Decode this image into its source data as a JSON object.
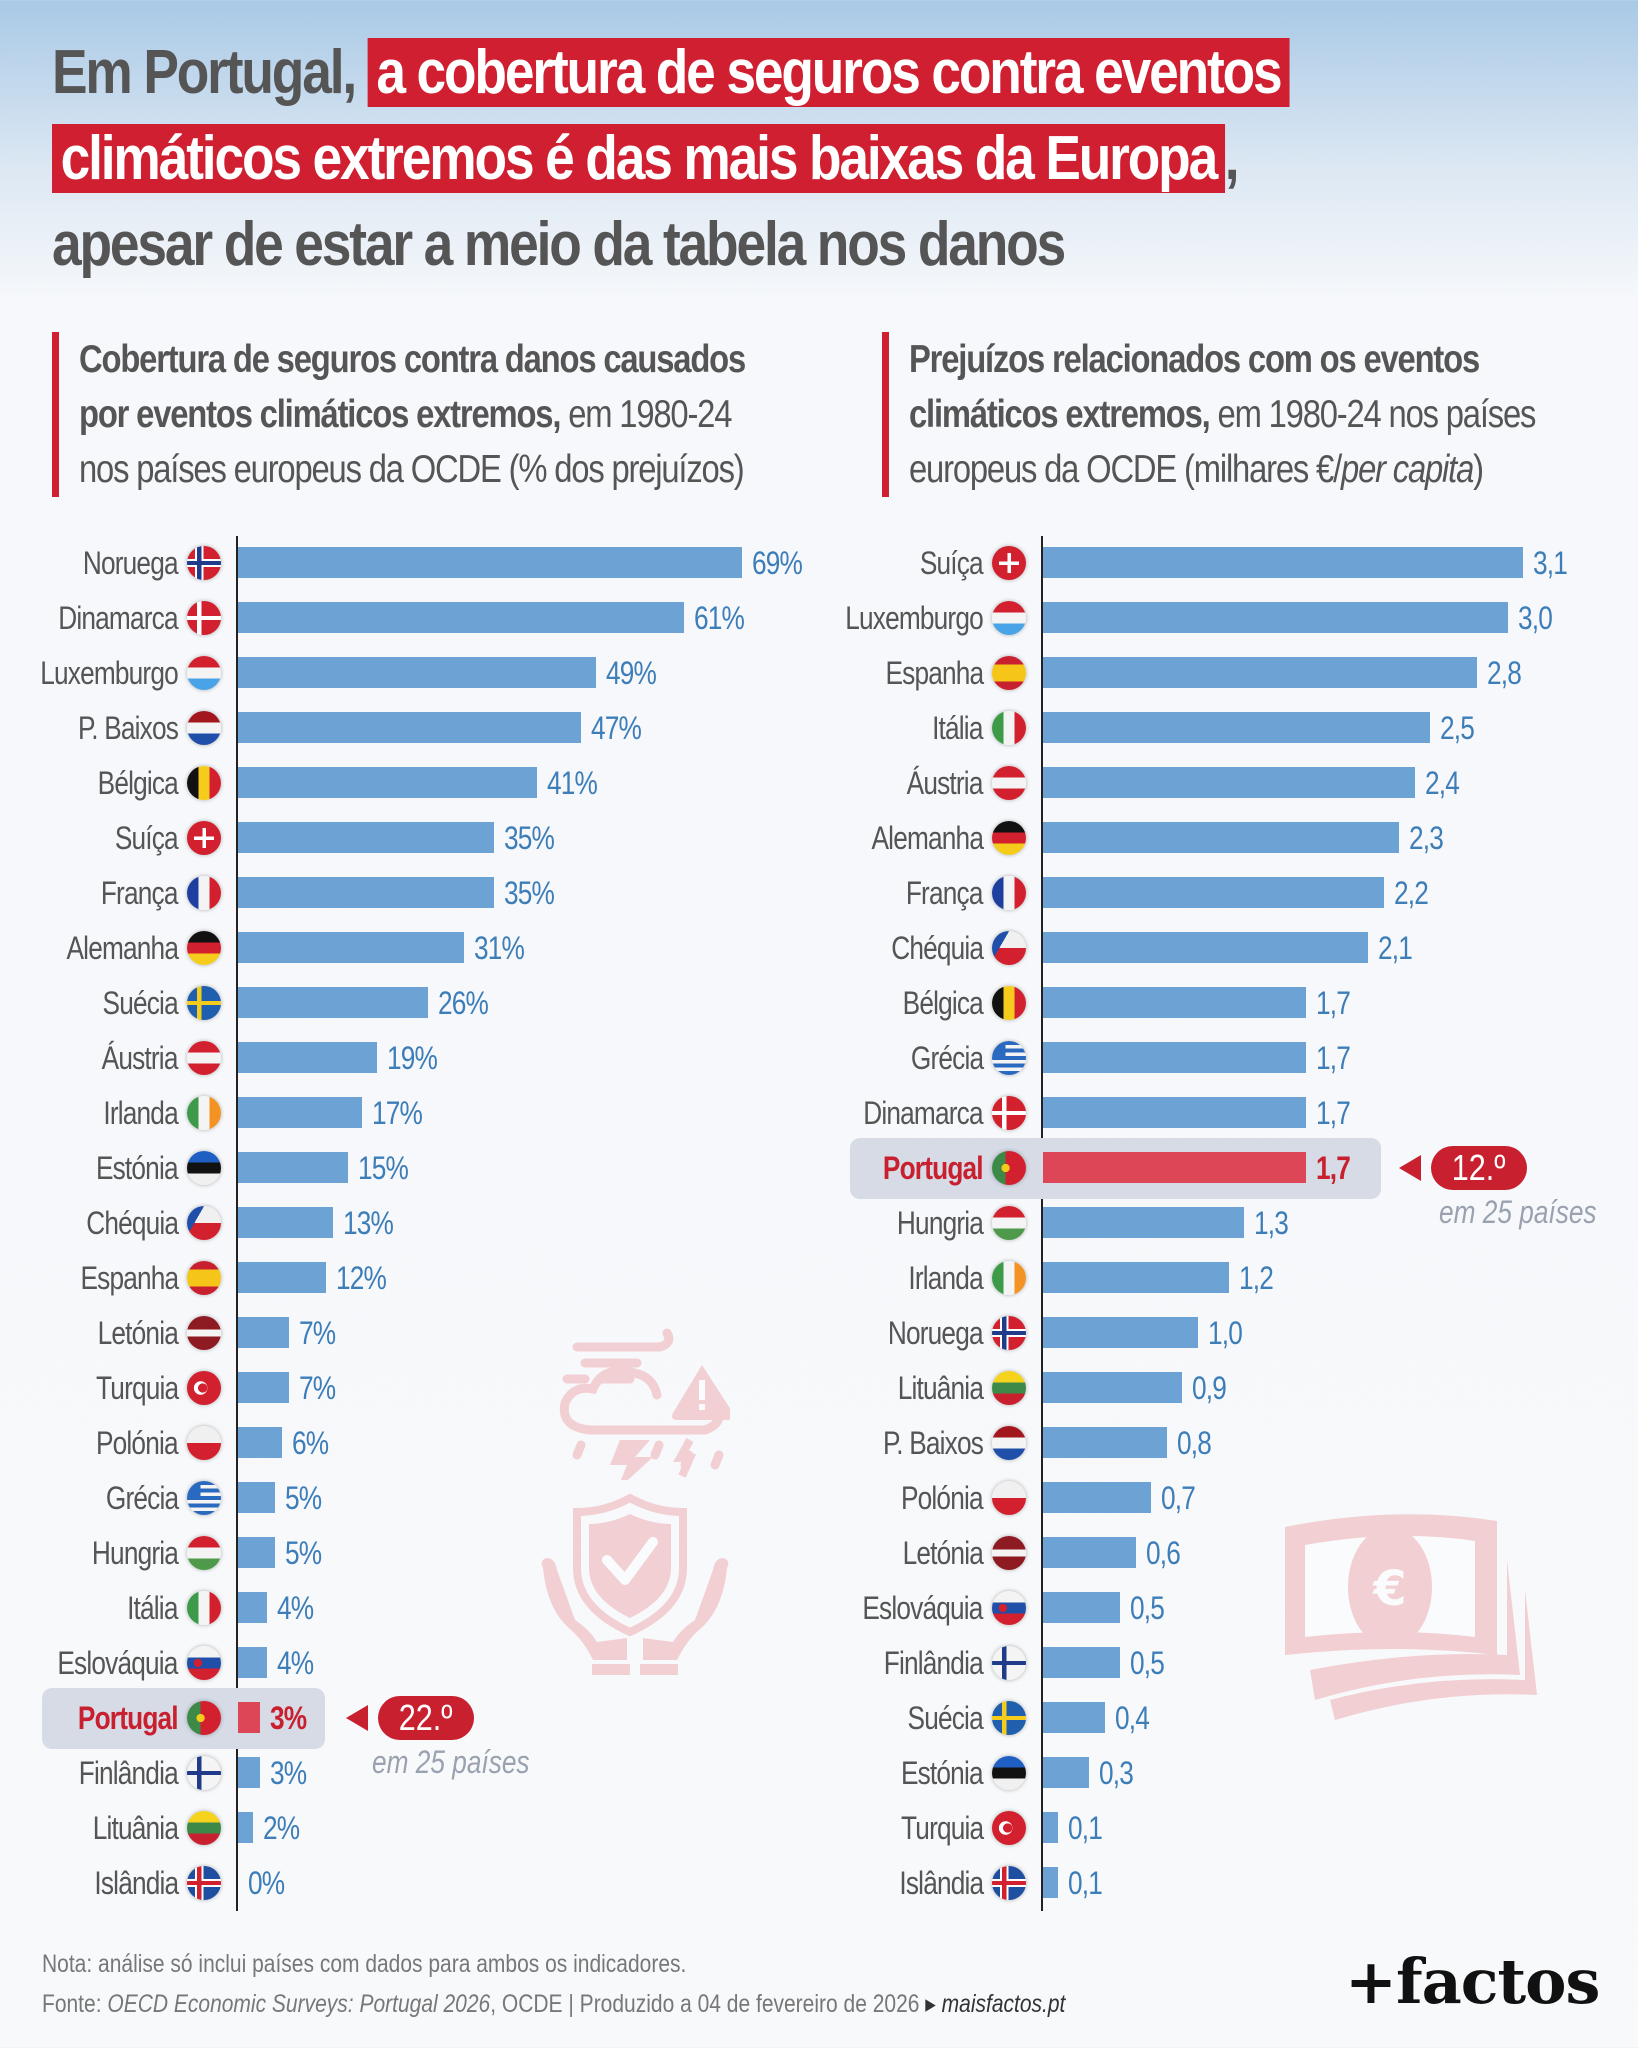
{
  "headline": {
    "line1_gray": "Em Portugal,",
    "line1_red": "a cobertura de seguros contra eventos",
    "line2_red": "climáticos extremos é das mais baixas da Europa",
    "line2_tail": ",",
    "line3": "apesar de estar a meio da tabela nos danos"
  },
  "left_subtitle": {
    "bold": "Cobertura de seguros contra danos causados por eventos climáticos extremos,",
    "line1": "Cobertura de seguros contra danos causados",
    "line2_bold": "por eventos climáticos extremos,",
    "line2_rest": " em 1980-24",
    "line3": "nos países europeus da OCDE (% dos prejuízos)"
  },
  "right_subtitle": {
    "line1": "Prejuízos relacionados com os eventos",
    "line2_bold": "climáticos extremos,",
    "line2_rest": " em 1980-24 nos países",
    "line3_a": "europeus da OCDE (milhares €/",
    "line3_italic": "per capita",
    "line3_b": ")"
  },
  "colors": {
    "bar": "#6ca3d4",
    "highlight_bar": "#dc4656",
    "accent_red": "#c8202f",
    "value_text": "#3d7db8",
    "highlight_bg": "#d6dbe6"
  },
  "chart_data": [
    {
      "type": "bar",
      "orientation": "horizontal",
      "title": "Cobertura de seguros contra danos causados por eventos climáticos extremos, em 1980-24 nos países europeus da OCDE (% dos prejuízos)",
      "xlabel": "",
      "ylabel": "",
      "unit": "%",
      "xlim": [
        0,
        69
      ],
      "grid": false,
      "highlight": "Portugal",
      "categories": [
        "Noruega",
        "Dinamarca",
        "Luxemburgo",
        "P. Baixos",
        "Bélgica",
        "Suíça",
        "França",
        "Alemanha",
        "Suécia",
        "Áustria",
        "Irlanda",
        "Estónia",
        "Chéquia",
        "Espanha",
        "Letónia",
        "Turquia",
        "Polónia",
        "Grécia",
        "Hungria",
        "Itália",
        "Eslováquia",
        "Portugal",
        "Finlândia",
        "Lituânia",
        "Islândia"
      ],
      "values": [
        69,
        61,
        49,
        47,
        41,
        35,
        35,
        31,
        26,
        19,
        17,
        15,
        13,
        12,
        7,
        7,
        6,
        5,
        5,
        4,
        4,
        3,
        3,
        2,
        0
      ],
      "labels": [
        "69%",
        "61%",
        "49%",
        "47%",
        "41%",
        "35%",
        "35%",
        "31%",
        "26%",
        "19%",
        "17%",
        "15%",
        "13%",
        "12%",
        "7%",
        "7%",
        "6%",
        "5%",
        "5%",
        "4%",
        "4%",
        "3%",
        "3%",
        "2%",
        "0%"
      ],
      "flags": [
        "no",
        "dk",
        "lu",
        "nl",
        "be",
        "ch",
        "fr",
        "de",
        "se",
        "at",
        "ie",
        "ee",
        "cz",
        "es",
        "lv",
        "tr",
        "pl",
        "gr",
        "hu",
        "it",
        "sk",
        "pt",
        "fi",
        "lt",
        "is"
      ],
      "annotation": {
        "rank": "22.º",
        "note": "em 25 países"
      }
    },
    {
      "type": "bar",
      "orientation": "horizontal",
      "title": "Prejuízos relacionados com os eventos climáticos extremos, em 1980-24 nos países europeus da OCDE (milhares €/per capita)",
      "xlabel": "",
      "ylabel": "",
      "unit": "milhares €/per capita",
      "xlim": [
        0,
        3.1
      ],
      "grid": false,
      "highlight": "Portugal",
      "categories": [
        "Suíça",
        "Luxemburgo",
        "Espanha",
        "Itália",
        "Áustria",
        "Alemanha",
        "França",
        "Chéquia",
        "Bélgica",
        "Grécia",
        "Dinamarca",
        "Portugal",
        "Hungria",
        "Irlanda",
        "Noruega",
        "Lituânia",
        "P. Baixos",
        "Polónia",
        "Letónia",
        "Eslováquia",
        "Finlândia",
        "Suécia",
        "Estónia",
        "Turquia",
        "Islândia"
      ],
      "values": [
        3.1,
        3.0,
        2.8,
        2.5,
        2.4,
        2.3,
        2.2,
        2.1,
        1.7,
        1.7,
        1.7,
        1.7,
        1.3,
        1.2,
        1.0,
        0.9,
        0.8,
        0.7,
        0.6,
        0.5,
        0.5,
        0.4,
        0.3,
        0.1,
        0.1
      ],
      "labels": [
        "3,1",
        "3,0",
        "2,8",
        "2,5",
        "2,4",
        "2,3",
        "2,2",
        "2,1",
        "1,7",
        "1,7",
        "1,7",
        "1,7",
        "1,3",
        "1,2",
        "1,0",
        "0,9",
        "0,8",
        "0,7",
        "0,6",
        "0,5",
        "0,5",
        "0,4",
        "0,3",
        "0,1",
        "0,1"
      ],
      "flags": [
        "ch",
        "lu",
        "es",
        "it",
        "at",
        "de",
        "fr",
        "cz",
        "be",
        "gr",
        "dk",
        "pt",
        "hu",
        "ie",
        "no",
        "lt",
        "nl",
        "pl",
        "lv",
        "sk",
        "fi",
        "se",
        "ee",
        "tr",
        "is"
      ],
      "annotation": {
        "rank": "12.º",
        "note": "em 25 países"
      }
    }
  ],
  "footer": {
    "note": "Nota: análise só inclui países com dados para ambos os indicadores.",
    "source_prefix": "Fonte: ",
    "source_italic": "OECD Economic Surveys: Portugal 2026",
    "source_rest": ", OCDE | Produzido a 04 de fevereiro de 2026 ",
    "arrow": "▸",
    "site": "maisfactos.pt"
  },
  "logo": "+factos",
  "icons": {
    "left_decoration": [
      "storm-warning-icon",
      "shield-hands-icon"
    ],
    "right_decoration": "euro-banknotes-icon"
  }
}
